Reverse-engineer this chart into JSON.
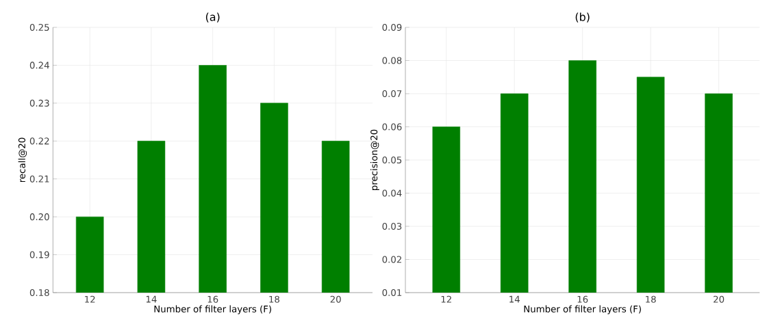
{
  "chart_data": [
    {
      "type": "bar",
      "title": "(a)",
      "xlabel": "Number of filter layers (F)",
      "ylabel": "recall@20",
      "categories": [
        "12",
        "14",
        "16",
        "18",
        "20"
      ],
      "values": [
        0.2,
        0.22,
        0.24,
        0.23,
        0.22
      ],
      "color": "#007f00",
      "ylim": [
        0.18,
        0.25
      ],
      "yticks": [
        0.18,
        0.19,
        {
          "value": 0.2,
          "label": "0.20"
        },
        0.21,
        0.22,
        0.23,
        0.24,
        0.25
      ],
      "grid": true
    },
    {
      "type": "bar",
      "title": "(b)",
      "xlabel": "Number of filter layers (F)",
      "ylabel": "precision@20",
      "categories": [
        "12",
        "14",
        "16",
        "18",
        "20"
      ],
      "values": [
        0.06,
        0.07,
        0.08,
        0.075,
        0.07
      ],
      "color": "#007f00",
      "ylim": [
        0.01,
        0.09
      ],
      "yticks": [
        0.01,
        0.02,
        0.03,
        0.04,
        0.05,
        0.06,
        0.07,
        0.08,
        0.09
      ],
      "grid": true
    }
  ]
}
